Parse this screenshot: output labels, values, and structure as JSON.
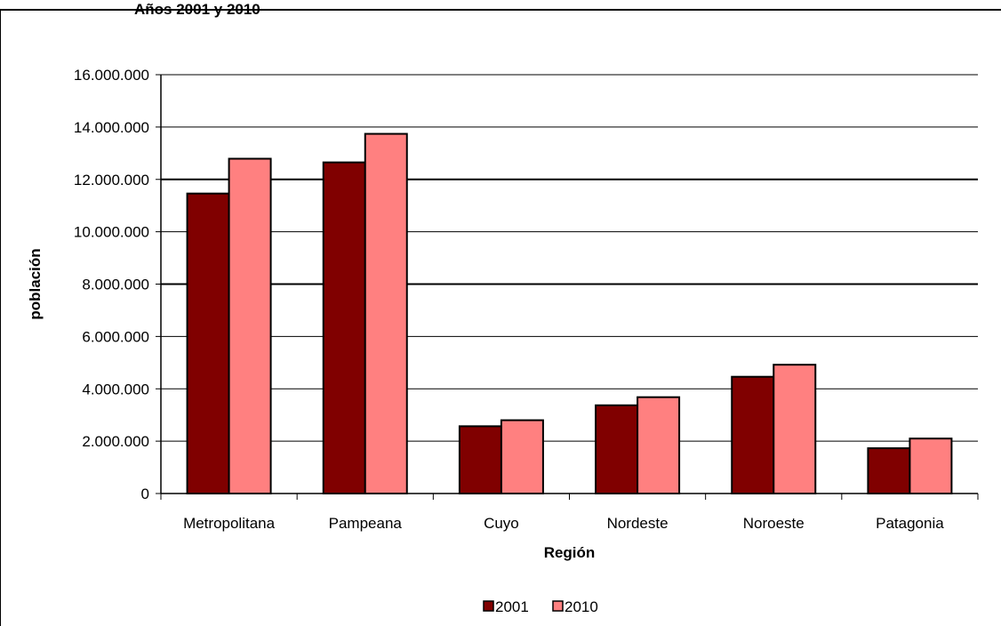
{
  "chart_data": {
    "type": "bar",
    "title": "Años 2001 y 2010",
    "xlabel": "Región",
    "ylabel": "población",
    "categories": [
      "Metropolitana",
      "Pampeana",
      "Cuyo",
      "Nordeste",
      "Noroeste",
      "Patagonia"
    ],
    "series": [
      {
        "name": "2001",
        "values": [
          11460000,
          12650000,
          2570000,
          3370000,
          4460000,
          1730000
        ]
      },
      {
        "name": "2010",
        "values": [
          12790000,
          13740000,
          2800000,
          3680000,
          4920000,
          2100000
        ]
      }
    ],
    "ylim": [
      0,
      16000000
    ],
    "yticks": [
      0,
      2000000,
      4000000,
      6000000,
      8000000,
      10000000,
      12000000,
      14000000,
      16000000
    ],
    "ytick_labels": [
      "0",
      "2.000.000",
      "4.000.000",
      "6.000.000",
      "8.000.000",
      "10.000.000",
      "12.000.000",
      "14.000.000",
      "16.000.000"
    ],
    "grid": true,
    "legend_position": "bottom",
    "colors": {
      "2001": "#800000",
      "2010": "#ff8080"
    }
  }
}
